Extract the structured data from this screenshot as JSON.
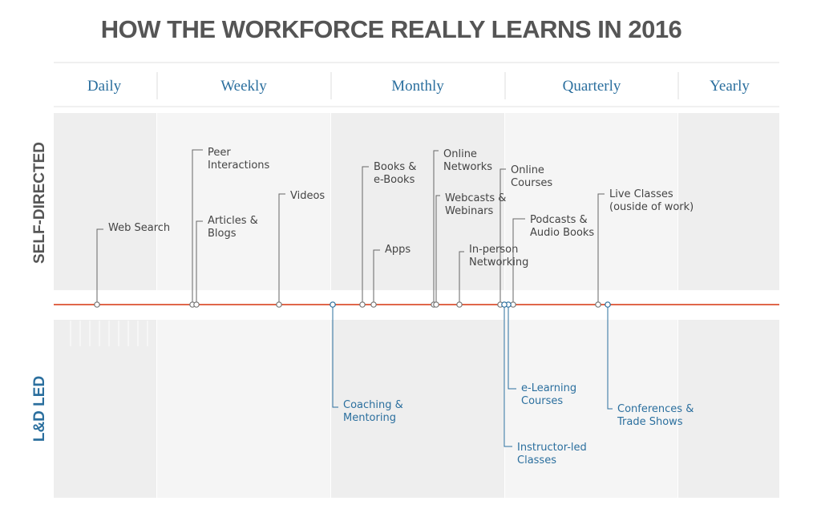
{
  "title": "HOW THE WORKFORCE REALLY LEARNS IN 2016",
  "frequencies": [
    "Daily",
    "Weekly",
    "Monthly",
    "Quarterly",
    "Yearly"
  ],
  "rows": {
    "self_directed": "SELF-DIRECTED",
    "ld_led": "L&D LED"
  },
  "colors": {
    "timeline": "#e0674a",
    "self_directed_text": "#444444",
    "ld_led_text": "#2b6f9e",
    "frequency_text": "#2b6f9e",
    "title": "#555555",
    "band_light": "#eeeeee",
    "band_lighter": "#f5f5f5"
  },
  "self_directed_items": [
    {
      "lines": [
        "Web Search"
      ]
    },
    {
      "lines": [
        "Peer",
        "Interactions"
      ]
    },
    {
      "lines": [
        "Articles &",
        "Blogs"
      ]
    },
    {
      "lines": [
        "Videos"
      ]
    },
    {
      "lines": [
        "Books &",
        "e-Books"
      ]
    },
    {
      "lines": [
        "Apps"
      ]
    },
    {
      "lines": [
        "Online",
        "Networks"
      ]
    },
    {
      "lines": [
        "Webcasts &",
        "Webinars"
      ]
    },
    {
      "lines": [
        "In-person",
        "Networking"
      ]
    },
    {
      "lines": [
        "Online",
        "Courses"
      ]
    },
    {
      "lines": [
        "Podcasts &",
        "Audio Books"
      ]
    },
    {
      "lines": [
        "Live Classes",
        "(ouside of work)"
      ]
    }
  ],
  "ld_led_items": [
    {
      "lines": [
        "Coaching &",
        "Mentoring"
      ]
    },
    {
      "lines": [
        "e-Learning",
        "Courses"
      ]
    },
    {
      "lines": [
        "Instructor-led",
        "Classes"
      ]
    },
    {
      "lines": [
        "Conferences &",
        "Trade Shows"
      ]
    }
  ]
}
